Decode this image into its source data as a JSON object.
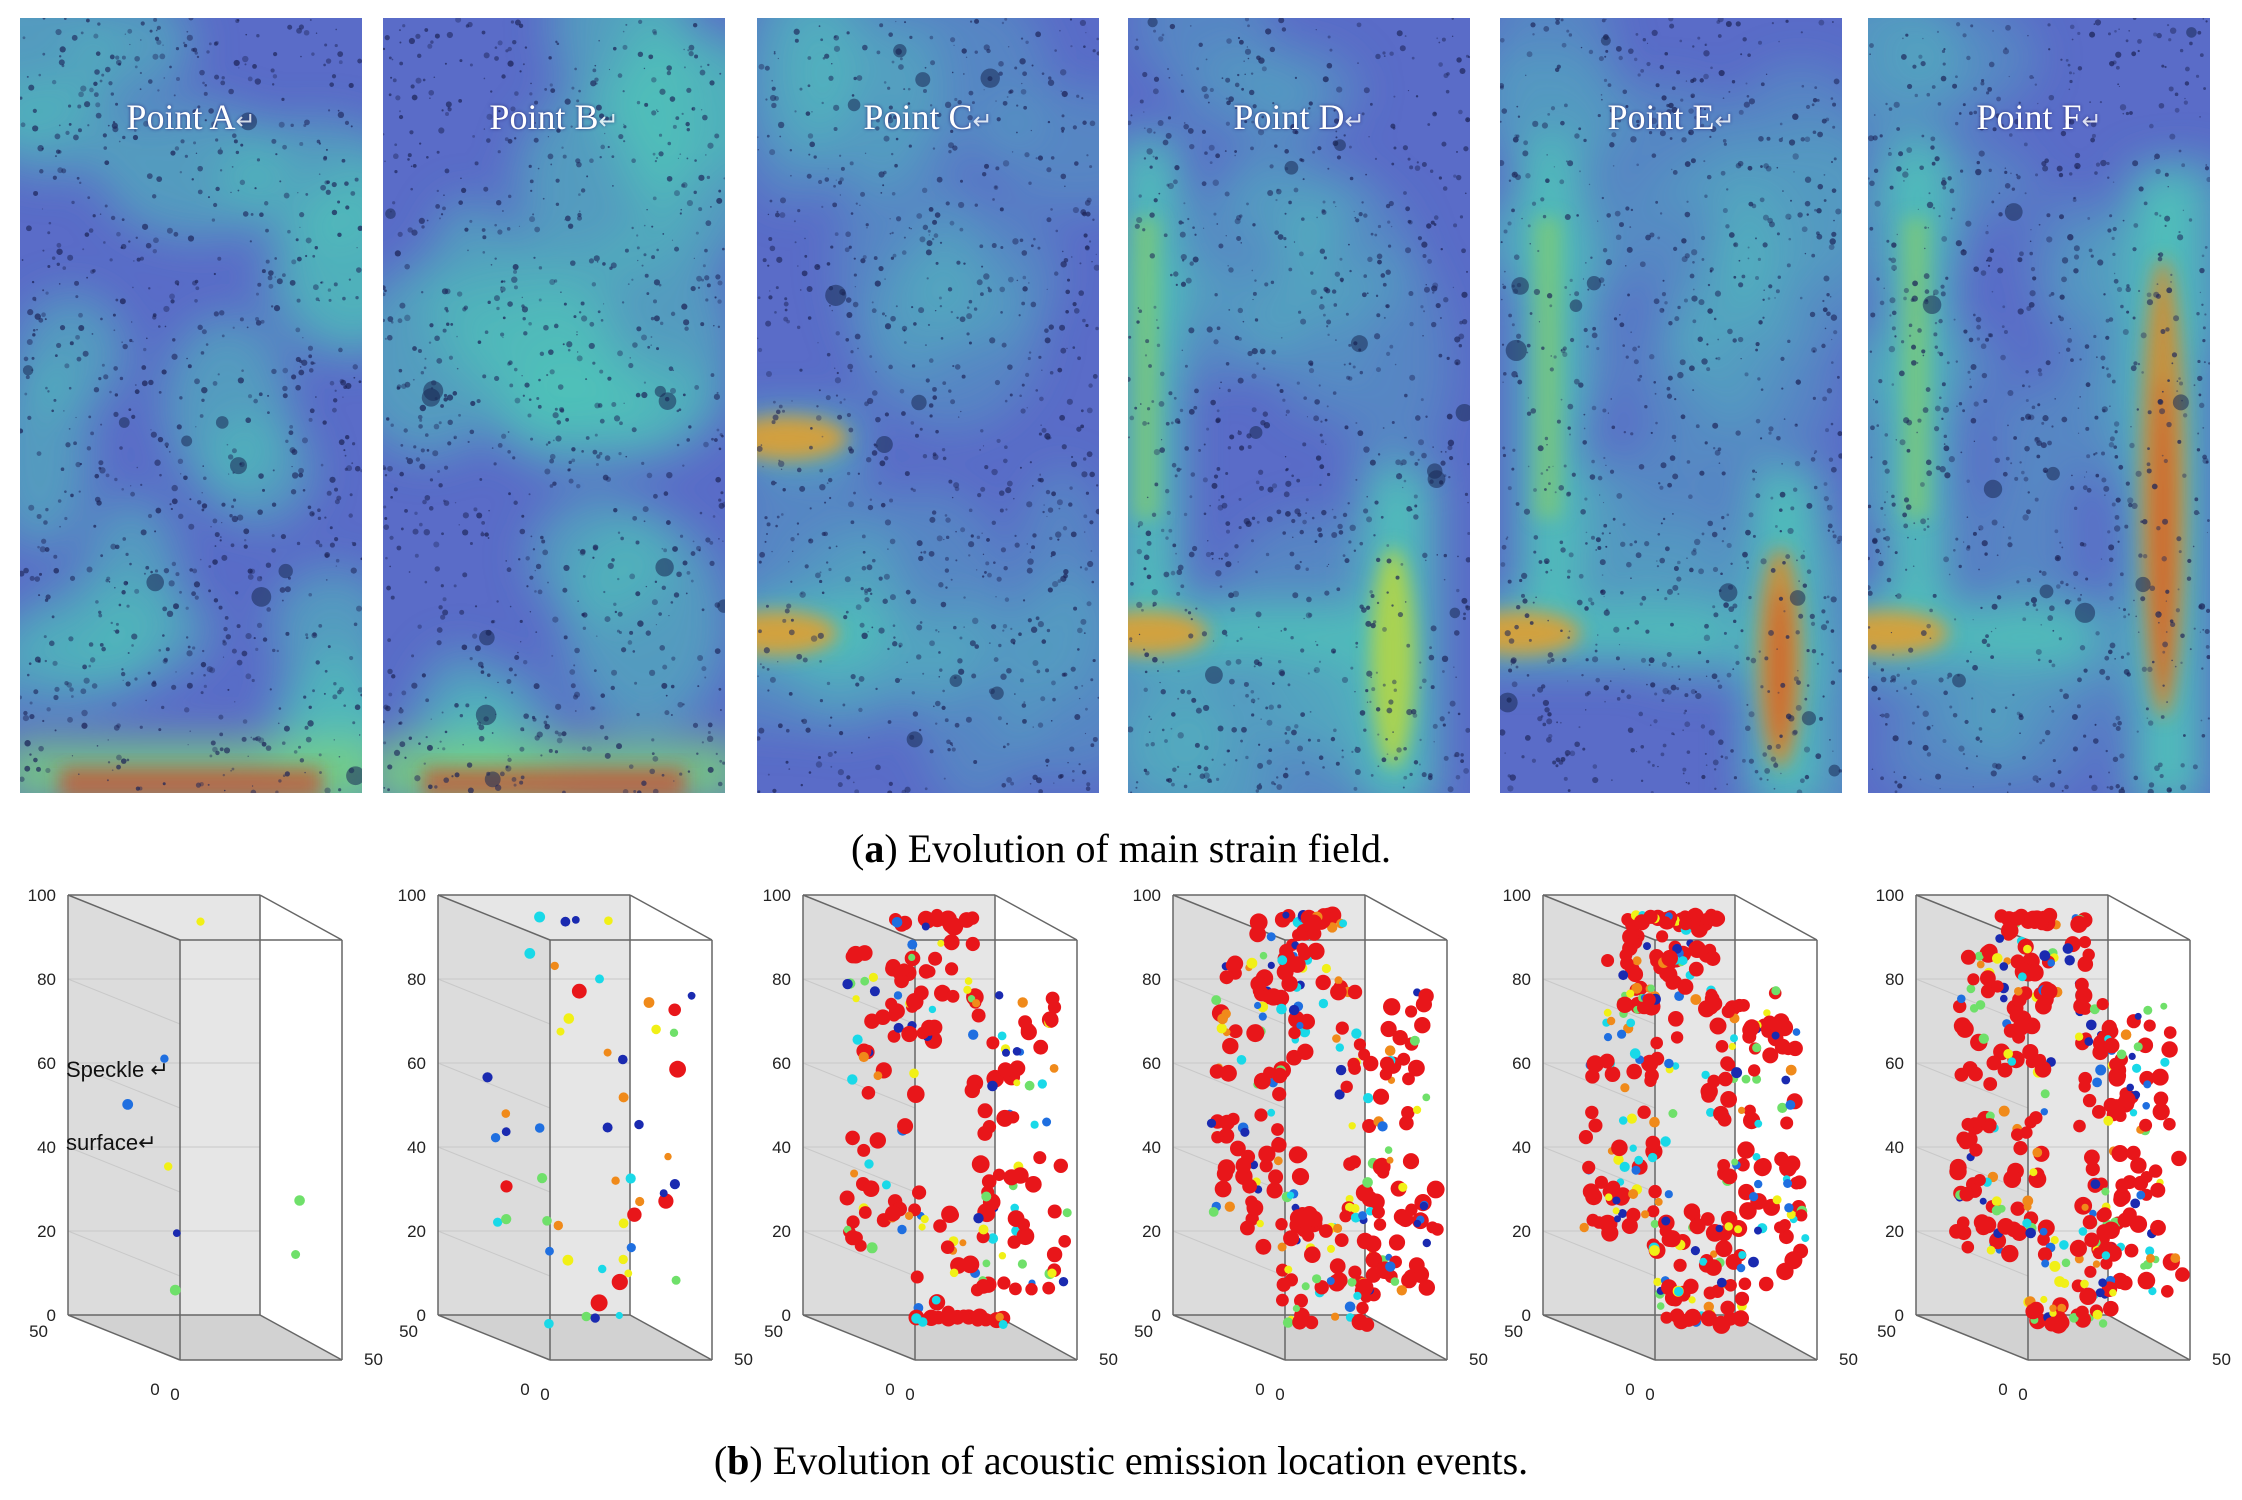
{
  "figure": {
    "caption_a_letter": "a",
    "caption_a_text": " Evolution of main strain field.",
    "caption_b_letter": "b",
    "caption_b_text": " Evolution of acoustic emission location events.",
    "return_mark": "↵",
    "strain_panels": [
      {
        "label": "Point A",
        "stage": 1
      },
      {
        "label": "Point B",
        "stage": 2
      },
      {
        "label": "Point C",
        "stage": 3
      },
      {
        "label": "Point D",
        "stage": 4
      },
      {
        "label": "Point E",
        "stage": 5
      },
      {
        "label": "Point F",
        "stage": 6
      }
    ],
    "ae_axes": {
      "z_ticks": [
        "0",
        "20",
        "40",
        "60",
        "80",
        "100"
      ],
      "x_tick_left": "50",
      "x_tick_zero": "0",
      "y_tick_zero": "0",
      "y_tick_right": "50"
    },
    "ae_annotation": {
      "line1": "Speckle",
      "line2": "surface"
    },
    "ae_event_counts": [
      8,
      55,
      230,
      330,
      360,
      380
    ],
    "colors": {
      "strain_low": "#5a6cc8",
      "strain_mid": "#4fc3b8",
      "strain_high": "#d24a2a",
      "ae_red": "#e8161a",
      "ae_blue": "#1f6fe0",
      "ae_cyan": "#19d9e8",
      "ae_yellow": "#f1f016",
      "ae_green": "#6fe06a",
      "ae_orange": "#f08a1a",
      "ae_darkblue": "#1a2ab0"
    }
  }
}
